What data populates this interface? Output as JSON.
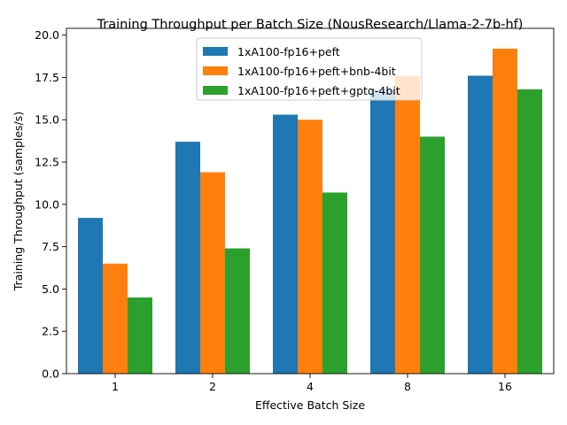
{
  "chart_data": {
    "type": "bar",
    "title": "Training Throughput per Batch Size (NousResearch/Llama-2-7b-hf)",
    "xlabel": "Effective Batch Size",
    "ylabel": "Training Throughput (samples/s)",
    "categories": [
      "1",
      "2",
      "4",
      "8",
      "16"
    ],
    "ylim": [
      0,
      20.4
    ],
    "yticks": [
      "0.0",
      "2.5",
      "5.0",
      "7.5",
      "10.0",
      "12.5",
      "15.0",
      "17.5",
      "20.0"
    ],
    "grid": false,
    "legend_position": "top-center",
    "series": [
      {
        "name": "1xA100-fp16+peft",
        "color": "#1f77b4",
        "values": [
          9.2,
          13.7,
          15.3,
          16.8,
          17.6
        ]
      },
      {
        "name": "1xA100-fp16+peft+bnb-4bit",
        "color": "#ff7f0e",
        "values": [
          6.5,
          11.9,
          15.0,
          17.6,
          19.2
        ]
      },
      {
        "name": "1xA100-fp16+peft+gptq-4bit",
        "color": "#2ca02c",
        "values": [
          4.5,
          7.4,
          10.7,
          14.0,
          16.8
        ]
      }
    ]
  }
}
